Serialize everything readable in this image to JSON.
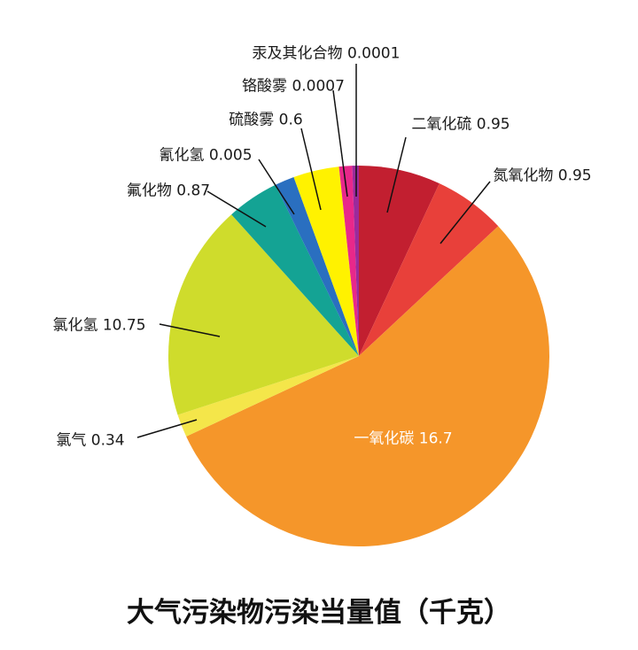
{
  "chart_data": {
    "type": "pie",
    "title": "大气污染物污染当量值（千克）",
    "slices": [
      {
        "label": "二氧化硫",
        "value": 0.95,
        "value_text": "0.95",
        "color": "#c21f30"
      },
      {
        "label": "氮氧化物",
        "value": 0.95,
        "value_text": "0.95",
        "color": "#e8403a"
      },
      {
        "label": "一氧化碳",
        "value": 16.7,
        "value_text": "16.7",
        "color": "#f5962a"
      },
      {
        "label": "氯气",
        "value": 0.34,
        "value_text": "0.34",
        "color": "#f4e64a"
      },
      {
        "label": "氯化氢",
        "value": 10.75,
        "value_text": "10.75",
        "color": "#cfdc2c"
      },
      {
        "label": "氟化物",
        "value": 0.87,
        "value_text": "0.87",
        "color": "#14a394"
      },
      {
        "label": "氰化氢",
        "value": 0.005,
        "value_text": "0.005",
        "color": "#2a6fc0"
      },
      {
        "label": "硫酸雾",
        "value": 0.6,
        "value_text": "0.6",
        "color": "#fff200"
      },
      {
        "label": "铬酸雾",
        "value": 0.0007,
        "value_text": "0.0007",
        "color": "#e8288a"
      },
      {
        "label": "汞及其化合物",
        "value": 0.0001,
        "value_text": "0.0001",
        "color": "#9b2a9b"
      }
    ],
    "legend": "none"
  }
}
